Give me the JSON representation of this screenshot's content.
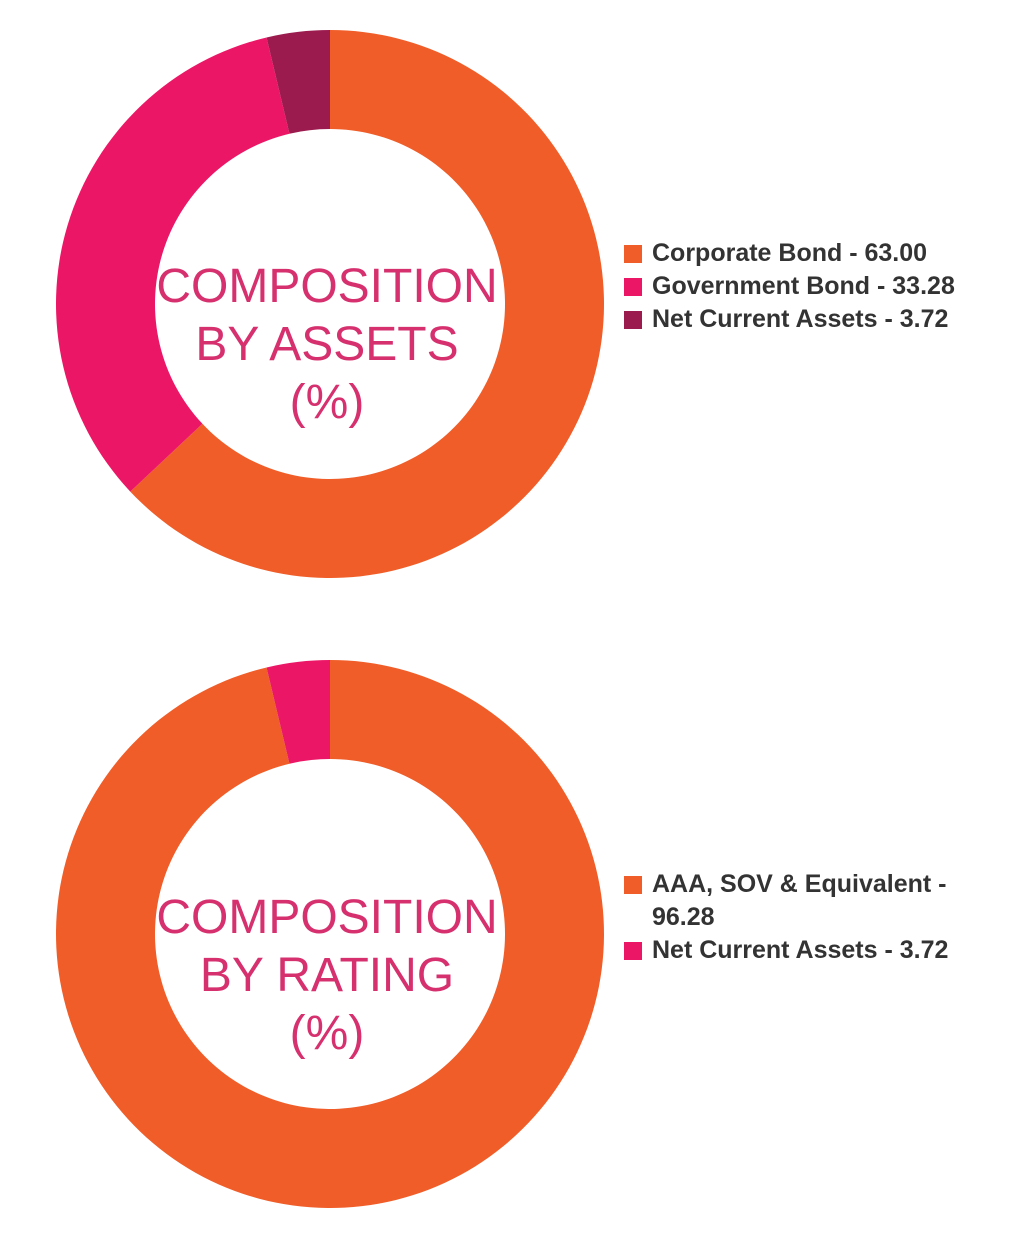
{
  "colors": {
    "orange": "#f05d28",
    "pink": "#eb1766",
    "maroon": "#9b1b4e",
    "label_text": "#d6306f",
    "legend_text": "#333333"
  },
  "chart_data": [
    {
      "type": "pie",
      "style": "donut",
      "center_label": [
        "COMPOSITION",
        "BY ASSETS",
        "(%)"
      ],
      "legend_placement": "right",
      "slices": [
        {
          "label": "Corporate Bond - 63.00",
          "value": 63.0,
          "color": "#f05d28"
        },
        {
          "label": "Government Bond - 33.28",
          "value": 33.28,
          "color": "#eb1766"
        },
        {
          "label": "Net Current Assets - 3.72",
          "value": 3.72,
          "color": "#9b1b4e"
        }
      ]
    },
    {
      "type": "pie",
      "style": "donut",
      "center_label": [
        "COMPOSITION",
        "BY RATING",
        "(%)"
      ],
      "legend_placement": "right",
      "slices": [
        {
          "label": "AAA, SOV & Equivalent - 96.28",
          "value": 96.28,
          "color": "#f05d28"
        },
        {
          "label": "Net Current Assets - 3.72",
          "value": 3.72,
          "color": "#eb1766"
        }
      ]
    }
  ]
}
